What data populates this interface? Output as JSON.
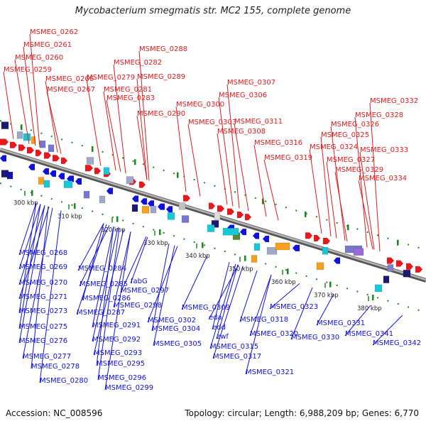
{
  "title": "Mycobacterium smegmatis str. MC2 155, complete genome",
  "footer": {
    "accession": "Accession: NC_008596",
    "info": "Topology: circular; Length: 6,988,209 bp; Genes: 6,770"
  },
  "colors": {
    "top_strand": "#e41a1c",
    "bottom_strand": "#1010e0",
    "backbone": "#8a8a8a",
    "tick": "#1a8a1a"
  },
  "scale_labels": [
    "300 kbp",
    "310 kbp",
    "320 kbp",
    "330 kbp",
    "340 kbp",
    "350 kbp",
    "360 kbp",
    "370 kbp",
    "380 kbp"
  ],
  "top_labels": [
    "MSMEG_0262",
    "MSMEG_0261",
    "MSMEG_0260",
    "MSMEG_0259",
    "MSMEG_0266",
    "MSMEG_0267",
    "MSMEG_0288",
    "MSMEG_0282",
    "MSMEG_0279",
    "MSMEG_0289",
    "MSMEG_0281",
    "MSMEG_0283",
    "MSMEG_0290",
    "MSMEG_0307",
    "MSMEG_0306",
    "MSMEG_0300",
    "MSMEG_0303",
    "MSMEG_0311",
    "MSMEG_0308",
    "MSMEG_0316",
    "MSMEG_0319",
    "MSMEG_0332",
    "MSMEG_0328",
    "MSMEG_0326",
    "MSMEG_0325",
    "MSMEG_0324",
    "MSMEG_0333",
    "MSMEG_0327",
    "MSMEG_0329",
    "MSMEG_0334"
  ],
  "bottom_labels": [
    "MSMEG_0268",
    "MSMEG_0269",
    "MSMEG_0270",
    "MSMEG_0271",
    "MSMEG_0273",
    "MSMEG_0275",
    "MSMEG_0276",
    "MSMEG_0277",
    "MSMEG_0278",
    "MSMEG_0280",
    "MSMEG_0284",
    "MSMEG_0285",
    "fabG",
    "MSMEG_0286",
    "MSMEG_0297",
    "MSMEG_0287",
    "MSMEG_0298",
    "MSMEG_0291",
    "MSMEG_0292",
    "MSMEG_0293",
    "MSMEG_0295",
    "MSMEG_0296",
    "MSMEG_0299",
    "MSMEG_0302",
    "MSMEG_0304",
    "MSMEG_0305",
    "MSMEG_0309",
    "eda",
    "edd",
    "zwf",
    "MSMEG_0315",
    "MSMEG_0317",
    "MSMEG_0318",
    "MSMEG_0320",
    "MSMEG_0321",
    "MSMEG_0323",
    "MSMEG_0331",
    "MSMEG_0330",
    "MSMEG_0341",
    "MSMEG_0342"
  ]
}
